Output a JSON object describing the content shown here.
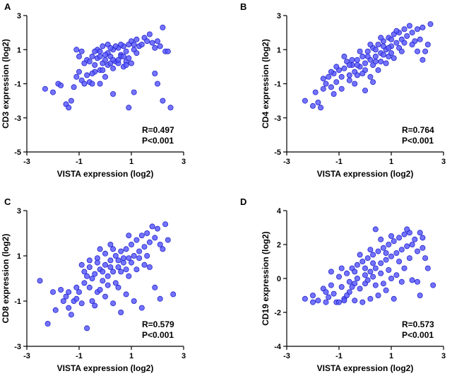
{
  "chart_data": [
    {
      "panel": "A",
      "type": "scatter",
      "xlabel": "VISTA expression (log2)",
      "ylabel": "CD3 expression (log2)",
      "xlim": [
        -3,
        3
      ],
      "ylim": [
        -5,
        3
      ],
      "xticks": [
        -3,
        -1,
        1,
        3
      ],
      "yticks": [
        -5,
        -3,
        -1,
        1,
        3
      ],
      "stats": {
        "r": "R=0.497",
        "p": "P<0.001"
      },
      "points": [
        [
          -2.3,
          -1.3
        ],
        [
          -2.0,
          -1.5
        ],
        [
          -1.8,
          -1.0
        ],
        [
          -1.7,
          -1.1
        ],
        [
          -1.5,
          -2.2
        ],
        [
          -1.4,
          -2.4
        ],
        [
          -1.3,
          -2.0
        ],
        [
          -1.2,
          -1.2
        ],
        [
          -1.1,
          -0.6
        ],
        [
          -1.0,
          -0.3
        ],
        [
          -0.9,
          -0.8
        ],
        [
          -0.8,
          -1.0
        ],
        [
          -0.7,
          -0.5
        ],
        [
          -0.6,
          -0.9
        ],
        [
          -0.5,
          -1.0
        ],
        [
          -0.4,
          -0.3
        ],
        [
          -1.1,
          1.0
        ],
        [
          -1.0,
          0.6
        ],
        [
          -0.9,
          0.9
        ],
        [
          -0.8,
          0.2
        ],
        [
          -0.7,
          0.4
        ],
        [
          -0.6,
          0.3
        ],
        [
          -0.5,
          0.6
        ],
        [
          -0.4,
          0.1
        ],
        [
          -0.3,
          0.5
        ],
        [
          -0.2,
          -0.2
        ],
        [
          -0.1,
          0.2
        ],
        [
          0.0,
          0.4
        ],
        [
          0.1,
          0.8
        ],
        [
          0.2,
          0.6
        ],
        [
          0.3,
          1.0
        ],
        [
          0.4,
          0.3
        ],
        [
          0.5,
          1.1
        ],
        [
          0.6,
          0.7
        ],
        [
          0.7,
          1.2
        ],
        [
          0.8,
          0.9
        ],
        [
          0.9,
          1.3
        ],
        [
          1.0,
          1.5
        ],
        [
          1.1,
          1.0
        ],
        [
          1.2,
          0.8
        ],
        [
          -0.3,
          1.0
        ],
        [
          -0.2,
          0.9
        ],
        [
          -0.1,
          1.2
        ],
        [
          0.0,
          0.7
        ],
        [
          0.1,
          1.3
        ],
        [
          0.2,
          1.1
        ],
        [
          0.3,
          0.4
        ],
        [
          0.4,
          1.2
        ],
        [
          0.5,
          0.2
        ],
        [
          0.6,
          0.6
        ],
        [
          0.7,
          0.0
        ],
        [
          0.8,
          0.3
        ],
        [
          0.9,
          0.5
        ],
        [
          1.0,
          0.2
        ],
        [
          1.1,
          1.3
        ],
        [
          1.2,
          1.6
        ],
        [
          1.3,
          1.2
        ],
        [
          1.4,
          1.3
        ],
        [
          1.5,
          1.7
        ],
        [
          1.6,
          1.5
        ],
        [
          1.7,
          1.9
        ],
        [
          1.8,
          1.4
        ],
        [
          1.9,
          1.1
        ],
        [
          2.0,
          1.5
        ],
        [
          2.1,
          1.2
        ],
        [
          2.2,
          2.3
        ],
        [
          2.3,
          0.9
        ],
        [
          2.4,
          0.9
        ],
        [
          1.9,
          -0.4
        ],
        [
          2.0,
          -1.0
        ],
        [
          2.2,
          -2.0
        ],
        [
          2.5,
          -2.4
        ],
        [
          1.1,
          -1.5
        ],
        [
          0.9,
          -2.4
        ],
        [
          0.3,
          -1.6
        ],
        [
          0.0,
          -0.6
        ],
        [
          -0.2,
          -1.0
        ],
        [
          -0.5,
          -0.4
        ],
        [
          0.1,
          0.1
        ],
        [
          0.3,
          -0.1
        ],
        [
          0.5,
          0.4
        ],
        [
          0.7,
          0.6
        ],
        [
          -0.4,
          0.9
        ],
        [
          0.6,
          1.3
        ],
        [
          -0.2,
          0.6
        ],
        [
          0.2,
          0.2
        ],
        [
          0.8,
          0.1
        ],
        [
          -0.1,
          -0.2
        ]
      ]
    },
    {
      "panel": "B",
      "type": "scatter",
      "xlabel": "VISTA expression (log2)",
      "ylabel": "CD4 expression (log2)",
      "xlim": [
        -3,
        3
      ],
      "ylim": [
        -5,
        3
      ],
      "xticks": [
        -3,
        -1,
        1,
        3
      ],
      "yticks": [
        -5,
        -3,
        -1,
        1,
        3
      ],
      "stats": {
        "r": "R=0.764",
        "p": "P<0.001"
      },
      "points": [
        [
          -2.3,
          -2.0
        ],
        [
          -2.0,
          -2.3
        ],
        [
          -1.9,
          -1.5
        ],
        [
          -1.8,
          -2.1
        ],
        [
          -1.7,
          -2.4
        ],
        [
          -1.6,
          -1.3
        ],
        [
          -1.5,
          -1.0
        ],
        [
          -1.4,
          -0.6
        ],
        [
          -1.3,
          -1.2
        ],
        [
          -1.2,
          -0.4
        ],
        [
          -1.1,
          -0.9
        ],
        [
          -1.0,
          -0.2
        ],
        [
          -0.9,
          -0.6
        ],
        [
          -0.8,
          -0.1
        ],
        [
          -0.7,
          0.3
        ],
        [
          -0.6,
          -0.5
        ],
        [
          -0.5,
          0.1
        ],
        [
          -0.4,
          -0.3
        ],
        [
          -0.3,
          0.4
        ],
        [
          -0.2,
          0.0
        ],
        [
          -0.1,
          0.6
        ],
        [
          0.0,
          0.2
        ],
        [
          0.1,
          0.9
        ],
        [
          0.2,
          0.4
        ],
        [
          0.3,
          1.1
        ],
        [
          0.4,
          0.6
        ],
        [
          0.5,
          1.3
        ],
        [
          0.6,
          0.8
        ],
        [
          0.7,
          1.5
        ],
        [
          0.8,
          1.0
        ],
        [
          0.9,
          1.7
        ],
        [
          1.0,
          1.2
        ],
        [
          1.1,
          1.9
        ],
        [
          1.2,
          1.4
        ],
        [
          1.3,
          2.0
        ],
        [
          1.4,
          1.6
        ],
        [
          1.5,
          2.2
        ],
        [
          1.6,
          1.8
        ],
        [
          1.7,
          2.4
        ],
        [
          1.8,
          2.0
        ],
        [
          1.9,
          1.5
        ],
        [
          2.0,
          2.2
        ],
        [
          2.1,
          1.6
        ],
        [
          2.2,
          2.3
        ],
        [
          2.3,
          0.9
        ],
        [
          2.4,
          1.3
        ],
        [
          2.5,
          2.5
        ],
        [
          2.2,
          0.4
        ],
        [
          -1.2,
          -1.6
        ],
        [
          -0.9,
          -1.3
        ],
        [
          -0.6,
          -0.8
        ],
        [
          -0.3,
          -0.5
        ],
        [
          0.0,
          -0.2
        ],
        [
          0.3,
          0.1
        ],
        [
          0.6,
          0.3
        ],
        [
          0.9,
          0.6
        ],
        [
          -0.8,
          0.6
        ],
        [
          -0.5,
          0.4
        ],
        [
          -0.2,
          0.9
        ],
        [
          0.1,
          0.6
        ],
        [
          0.4,
          1.0
        ],
        [
          0.7,
          1.2
        ],
        [
          1.0,
          0.8
        ],
        [
          1.3,
          1.1
        ],
        [
          0.2,
          -0.6
        ],
        [
          0.5,
          -0.2
        ],
        [
          0.8,
          0.2
        ],
        [
          1.1,
          0.5
        ],
        [
          1.4,
          0.9
        ],
        [
          -0.4,
          -1.0
        ],
        [
          0.0,
          -1.4
        ],
        [
          0.3,
          -0.9
        ],
        [
          -1.6,
          -0.7
        ],
        [
          -1.1,
          0.0
        ],
        [
          0.6,
          1.7
        ],
        [
          1.2,
          2.1
        ],
        [
          1.8,
          1.3
        ],
        [
          2.0,
          0.9
        ],
        [
          -0.3,
          0.1
        ],
        [
          0.4,
          0.3
        ],
        [
          -0.1,
          -0.4
        ],
        [
          0.9,
          1.1
        ],
        [
          1.5,
          1.4
        ],
        [
          -0.6,
          0.1
        ],
        [
          0.2,
          1.3
        ],
        [
          1.0,
          1.6
        ],
        [
          -1.3,
          -0.3
        ],
        [
          0.7,
          0.7
        ]
      ]
    },
    {
      "panel": "C",
      "type": "scatter",
      "xlabel": "VISTA expression (log2)",
      "ylabel": "CD8 expression (log2)",
      "xlim": [
        -3,
        3
      ],
      "ylim": [
        -3,
        3
      ],
      "xticks": [
        -3,
        -1,
        1,
        3
      ],
      "yticks": [
        -3,
        -1,
        1,
        3
      ],
      "stats": {
        "r": "R=0.579",
        "p": "P<0.001"
      },
      "points": [
        [
          -2.5,
          -0.1
        ],
        [
          -2.2,
          -2.0
        ],
        [
          -2.0,
          -0.6
        ],
        [
          -1.9,
          -1.4
        ],
        [
          -1.6,
          -1.0
        ],
        [
          -1.5,
          -0.8
        ],
        [
          -1.4,
          -1.3
        ],
        [
          -1.3,
          -1.6
        ],
        [
          -1.2,
          -1.0
        ],
        [
          -1.1,
          -0.4
        ],
        [
          -1.0,
          -0.6
        ],
        [
          -0.9,
          -1.1
        ],
        [
          -0.8,
          -0.2
        ],
        [
          -0.7,
          0.1
        ],
        [
          -0.6,
          -0.4
        ],
        [
          -0.5,
          -1.0
        ],
        [
          -0.4,
          0.2
        ],
        [
          -0.3,
          -0.6
        ],
        [
          -0.2,
          0.4
        ],
        [
          -0.1,
          -0.1
        ],
        [
          0.0,
          0.6
        ],
        [
          0.1,
          0.1
        ],
        [
          0.2,
          0.8
        ],
        [
          0.3,
          0.3
        ],
        [
          0.4,
          1.0
        ],
        [
          0.5,
          0.5
        ],
        [
          0.6,
          1.2
        ],
        [
          0.7,
          0.7
        ],
        [
          0.8,
          1.3
        ],
        [
          0.9,
          0.9
        ],
        [
          1.0,
          1.5
        ],
        [
          1.1,
          1.0
        ],
        [
          1.2,
          1.7
        ],
        [
          1.3,
          1.2
        ],
        [
          1.4,
          1.9
        ],
        [
          1.5,
          1.4
        ],
        [
          1.6,
          2.0
        ],
        [
          1.7,
          1.6
        ],
        [
          1.8,
          2.3
        ],
        [
          1.9,
          1.8
        ],
        [
          2.0,
          2.2
        ],
        [
          2.1,
          1.5
        ],
        [
          2.2,
          1.3
        ],
        [
          2.3,
          2.4
        ],
        [
          2.4,
          1.7
        ],
        [
          1.9,
          -0.4
        ],
        [
          2.1,
          -0.9
        ],
        [
          2.6,
          -0.7
        ],
        [
          -0.6,
          0.8
        ],
        [
          -0.3,
          0.9
        ],
        [
          0.0,
          1.1
        ],
        [
          0.3,
          1.3
        ],
        [
          0.6,
          0.3
        ],
        [
          0.9,
          0.1
        ],
        [
          1.2,
          0.4
        ],
        [
          1.5,
          0.6
        ],
        [
          -0.9,
          0.6
        ],
        [
          -0.6,
          0.5
        ],
        [
          -0.2,
          1.3
        ],
        [
          0.2,
          1.5
        ],
        [
          0.5,
          -0.4
        ],
        [
          0.8,
          -0.7
        ],
        [
          1.1,
          -1.0
        ],
        [
          1.4,
          -1.3
        ],
        [
          0.0,
          -0.8
        ],
        [
          0.3,
          -1.1
        ],
        [
          0.6,
          -1.5
        ],
        [
          -0.4,
          -1.2
        ],
        [
          -1.4,
          -0.6
        ],
        [
          -0.7,
          -2.2
        ],
        [
          0.4,
          -0.2
        ],
        [
          0.7,
          0.9
        ],
        [
          -0.1,
          0.3
        ],
        [
          0.1,
          -0.3
        ],
        [
          -0.8,
          0.3
        ],
        [
          1.0,
          0.7
        ],
        [
          1.3,
          0.9
        ],
        [
          -0.5,
          0.0
        ],
        [
          0.9,
          1.9
        ],
        [
          1.7,
          0.5
        ],
        [
          -1.1,
          -0.9
        ],
        [
          0.2,
          0.5
        ],
        [
          -0.2,
          -0.5
        ],
        [
          0.5,
          0.8
        ],
        [
          1.6,
          1.0
        ],
        [
          -1.7,
          -0.5
        ],
        [
          0.8,
          0.4
        ],
        [
          -0.3,
          0.7
        ]
      ]
    },
    {
      "panel": "D",
      "type": "scatter",
      "xlabel": "VISTA expression (log2)",
      "ylabel": "CD19 expression (log2)",
      "xlim": [
        -3,
        3
      ],
      "ylim": [
        -4,
        4
      ],
      "xticks": [
        -3,
        -1,
        1,
        3
      ],
      "yticks": [
        -4,
        -2,
        0,
        2,
        4
      ],
      "stats": {
        "r": "R=0.573",
        "p": "P<0.001"
      },
      "points": [
        [
          -2.3,
          -1.2
        ],
        [
          -2.0,
          -1.0
        ],
        [
          -1.8,
          -1.3
        ],
        [
          -1.6,
          -0.6
        ],
        [
          -1.5,
          -1.4
        ],
        [
          -1.4,
          -1.1
        ],
        [
          -1.3,
          -0.4
        ],
        [
          -1.2,
          -0.9
        ],
        [
          -1.1,
          -1.4
        ],
        [
          -1.0,
          0.1
        ],
        [
          -0.9,
          -0.5
        ],
        [
          -0.8,
          -1.2
        ],
        [
          -0.7,
          0.3
        ],
        [
          -0.6,
          -0.8
        ],
        [
          -0.5,
          0.6
        ],
        [
          -0.4,
          -0.3
        ],
        [
          -0.3,
          0.8
        ],
        [
          -0.2,
          -0.6
        ],
        [
          -0.1,
          1.0
        ],
        [
          0.0,
          0.2
        ],
        [
          0.1,
          1.2
        ],
        [
          0.2,
          0.4
        ],
        [
          0.3,
          1.4
        ],
        [
          0.4,
          0.6
        ],
        [
          0.5,
          1.6
        ],
        [
          0.6,
          0.9
        ],
        [
          0.7,
          1.8
        ],
        [
          0.8,
          1.1
        ],
        [
          0.9,
          2.0
        ],
        [
          1.0,
          1.3
        ],
        [
          1.1,
          2.2
        ],
        [
          1.2,
          1.5
        ],
        [
          1.3,
          2.4
        ],
        [
          1.4,
          1.7
        ],
        [
          1.5,
          2.6
        ],
        [
          1.6,
          1.9
        ],
        [
          1.7,
          2.7
        ],
        [
          1.8,
          2.0
        ],
        [
          1.9,
          2.3
        ],
        [
          2.0,
          1.6
        ],
        [
          2.1,
          2.7
        ],
        [
          2.2,
          1.8
        ],
        [
          2.3,
          1.2
        ],
        [
          2.4,
          0.6
        ],
        [
          2.0,
          -0.2
        ],
        [
          2.1,
          -1.0
        ],
        [
          2.6,
          -0.4
        ],
        [
          1.8,
          -0.1
        ],
        [
          -1.0,
          -1.4
        ],
        [
          -0.7,
          -1.0
        ],
        [
          -0.4,
          -1.3
        ],
        [
          -0.1,
          -1.4
        ],
        [
          0.2,
          -1.2
        ],
        [
          0.5,
          -1.0
        ],
        [
          0.8,
          -0.7
        ],
        [
          1.1,
          -1.2
        ],
        [
          -0.6,
          -0.2
        ],
        [
          -0.3,
          0.0
        ],
        [
          0.0,
          -0.3
        ],
        [
          0.3,
          0.1
        ],
        [
          0.6,
          0.3
        ],
        [
          0.9,
          0.5
        ],
        [
          1.2,
          0.2
        ],
        [
          1.5,
          0.6
        ],
        [
          -1.3,
          0.4
        ],
        [
          -0.9,
          0.6
        ],
        [
          -0.5,
          -0.5
        ],
        [
          0.1,
          -0.1
        ],
        [
          0.4,
          -0.4
        ],
        [
          0.7,
          -0.3
        ],
        [
          1.0,
          0.0
        ],
        [
          1.4,
          -0.2
        ],
        [
          -0.2,
          1.4
        ],
        [
          0.2,
          1.7
        ],
        [
          0.6,
          2.3
        ],
        [
          1.0,
          2.5
        ],
        [
          1.6,
          2.9
        ],
        [
          0.4,
          2.9
        ],
        [
          -0.8,
          -1.3
        ],
        [
          0.0,
          0.6
        ],
        [
          0.8,
          1.5
        ],
        [
          1.3,
          1.0
        ],
        [
          -1.5,
          -0.8
        ],
        [
          -0.4,
          0.4
        ],
        [
          0.3,
          0.9
        ],
        [
          1.7,
          1.2
        ],
        [
          2.2,
          2.4
        ],
        [
          -2.0,
          -1.4
        ]
      ]
    }
  ]
}
